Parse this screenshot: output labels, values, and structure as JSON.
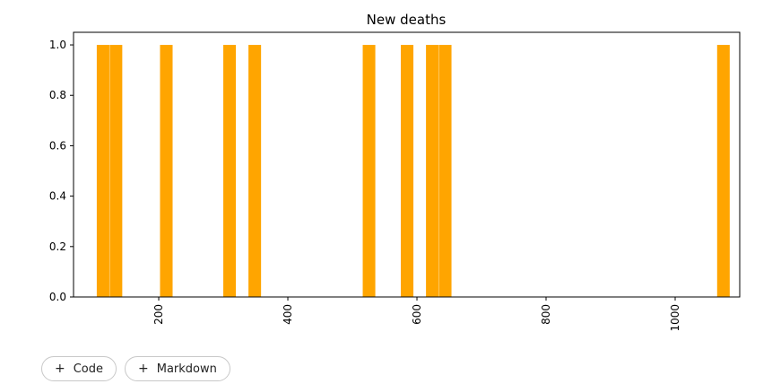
{
  "chart_data": {
    "type": "bar",
    "title": "New deaths",
    "xlabel": "",
    "ylabel": "",
    "xlim": [
      68,
      1100
    ],
    "ylim": [
      0,
      1.05
    ],
    "x_ticks": [
      200,
      400,
      600,
      800,
      1000
    ],
    "y_ticks": [
      0.0,
      0.2,
      0.4,
      0.6,
      0.8,
      1.0
    ],
    "x_tick_labels": [
      "200",
      "400",
      "600",
      "800",
      "1000"
    ],
    "y_tick_labels": [
      "0.0",
      "0.2",
      "0.4",
      "0.6",
      "0.8",
      "1.0"
    ],
    "bar_width": 19.5,
    "bars": [
      {
        "x": 104,
        "value": 1
      },
      {
        "x": 124,
        "value": 1
      },
      {
        "x": 202,
        "value": 1
      },
      {
        "x": 300,
        "value": 1
      },
      {
        "x": 339,
        "value": 1
      },
      {
        "x": 516,
        "value": 1
      },
      {
        "x": 575,
        "value": 1
      },
      {
        "x": 614,
        "value": 1
      },
      {
        "x": 634,
        "value": 1
      },
      {
        "x": 1065,
        "value": 1
      }
    ],
    "bar_color": "#ffa500",
    "grid": false,
    "legend": false
  },
  "toolbar": {
    "code_label": "Code",
    "markdown_label": "Markdown",
    "plus_symbol": "+"
  }
}
